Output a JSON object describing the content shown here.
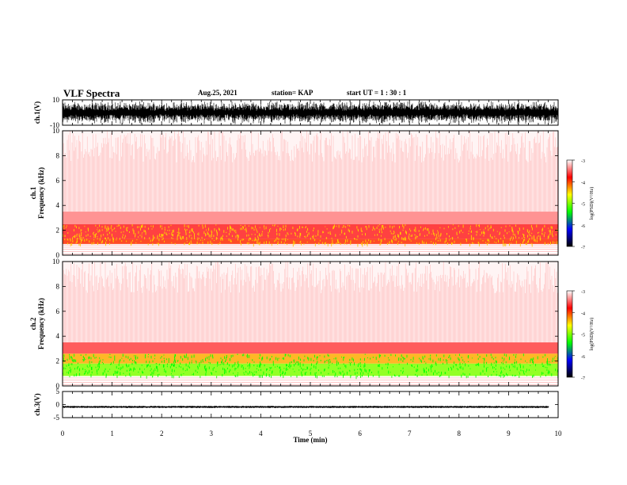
{
  "header": {
    "title": "VLF Spectra",
    "date": "Aug.25, 2021",
    "station": "station= KAP",
    "start": "start  UT  =   1 : 30 : 1"
  },
  "colorbar": {
    "label": "log(PSD)(V²/Hz)",
    "ticks": [
      "-3",
      "-4",
      "-5",
      "-6",
      "-7"
    ],
    "colors": [
      "#ffffff",
      "#ff0000",
      "#ffff00",
      "#00ff00",
      "#0000ff",
      "#000000"
    ]
  },
  "chart_data": [
    {
      "type": "line",
      "panel": "ch1-waveform",
      "ylabel": "ch.1(V)",
      "ylim": [
        -10,
        10
      ],
      "yticks": [
        "10",
        "-10"
      ],
      "xlim": [
        0,
        10
      ],
      "description_of_values": "dense noise waveform",
      "amplitude": [
        -9.5,
        9.5
      ]
    },
    {
      "type": "heatmap",
      "panel": "ch1-spectrogram",
      "ylabel": "ch.1\nFrequency (kHz)",
      "ylim": [
        0,
        10
      ],
      "yticks": [
        "0",
        "2",
        "4",
        "6",
        "8",
        "10"
      ],
      "xlim": [
        0,
        10
      ],
      "clim": [
        -7,
        -3
      ],
      "bands": [
        {
          "freq_range": [
            0.9,
            1.3
          ],
          "level": -3.9
        },
        {
          "freq_range": [
            1.3,
            2.5
          ],
          "level": -3.7
        },
        {
          "freq_range": [
            2.5,
            3.5
          ],
          "level": -3.4
        },
        {
          "freq_range": [
            3.5,
            10
          ],
          "level": -3.1
        }
      ]
    },
    {
      "type": "heatmap",
      "panel": "ch2-spectrogram",
      "ylabel": "ch.2\nFrequency (kHz)",
      "ylim": [
        0,
        10
      ],
      "yticks": [
        "0",
        "2",
        "4",
        "6",
        "8",
        "10"
      ],
      "xlim": [
        0,
        10
      ],
      "clim": [
        -7,
        -3
      ],
      "bands": [
        {
          "freq_range": [
            0.8,
            1.8
          ],
          "level": -4.8
        },
        {
          "freq_range": [
            1.8,
            2.6
          ],
          "level": -4.2
        },
        {
          "freq_range": [
            2.6,
            3.5
          ],
          "level": -3.6
        },
        {
          "freq_range": [
            3.5,
            10
          ],
          "level": -3.1
        }
      ]
    },
    {
      "type": "line",
      "panel": "ch3-waveform",
      "ylabel": "ch.3(V)",
      "ylim": [
        -5,
        5
      ],
      "yticks": [
        "5",
        "0",
        "-5"
      ],
      "xlim": [
        0,
        10
      ],
      "xticks": [
        "0",
        "1",
        "2",
        "3",
        "4",
        "5",
        "6",
        "7",
        "8",
        "9",
        "10"
      ],
      "xlabel": "Time (min)",
      "level": -0.9,
      "amplitude": [
        -1.3,
        -0.5
      ]
    }
  ]
}
